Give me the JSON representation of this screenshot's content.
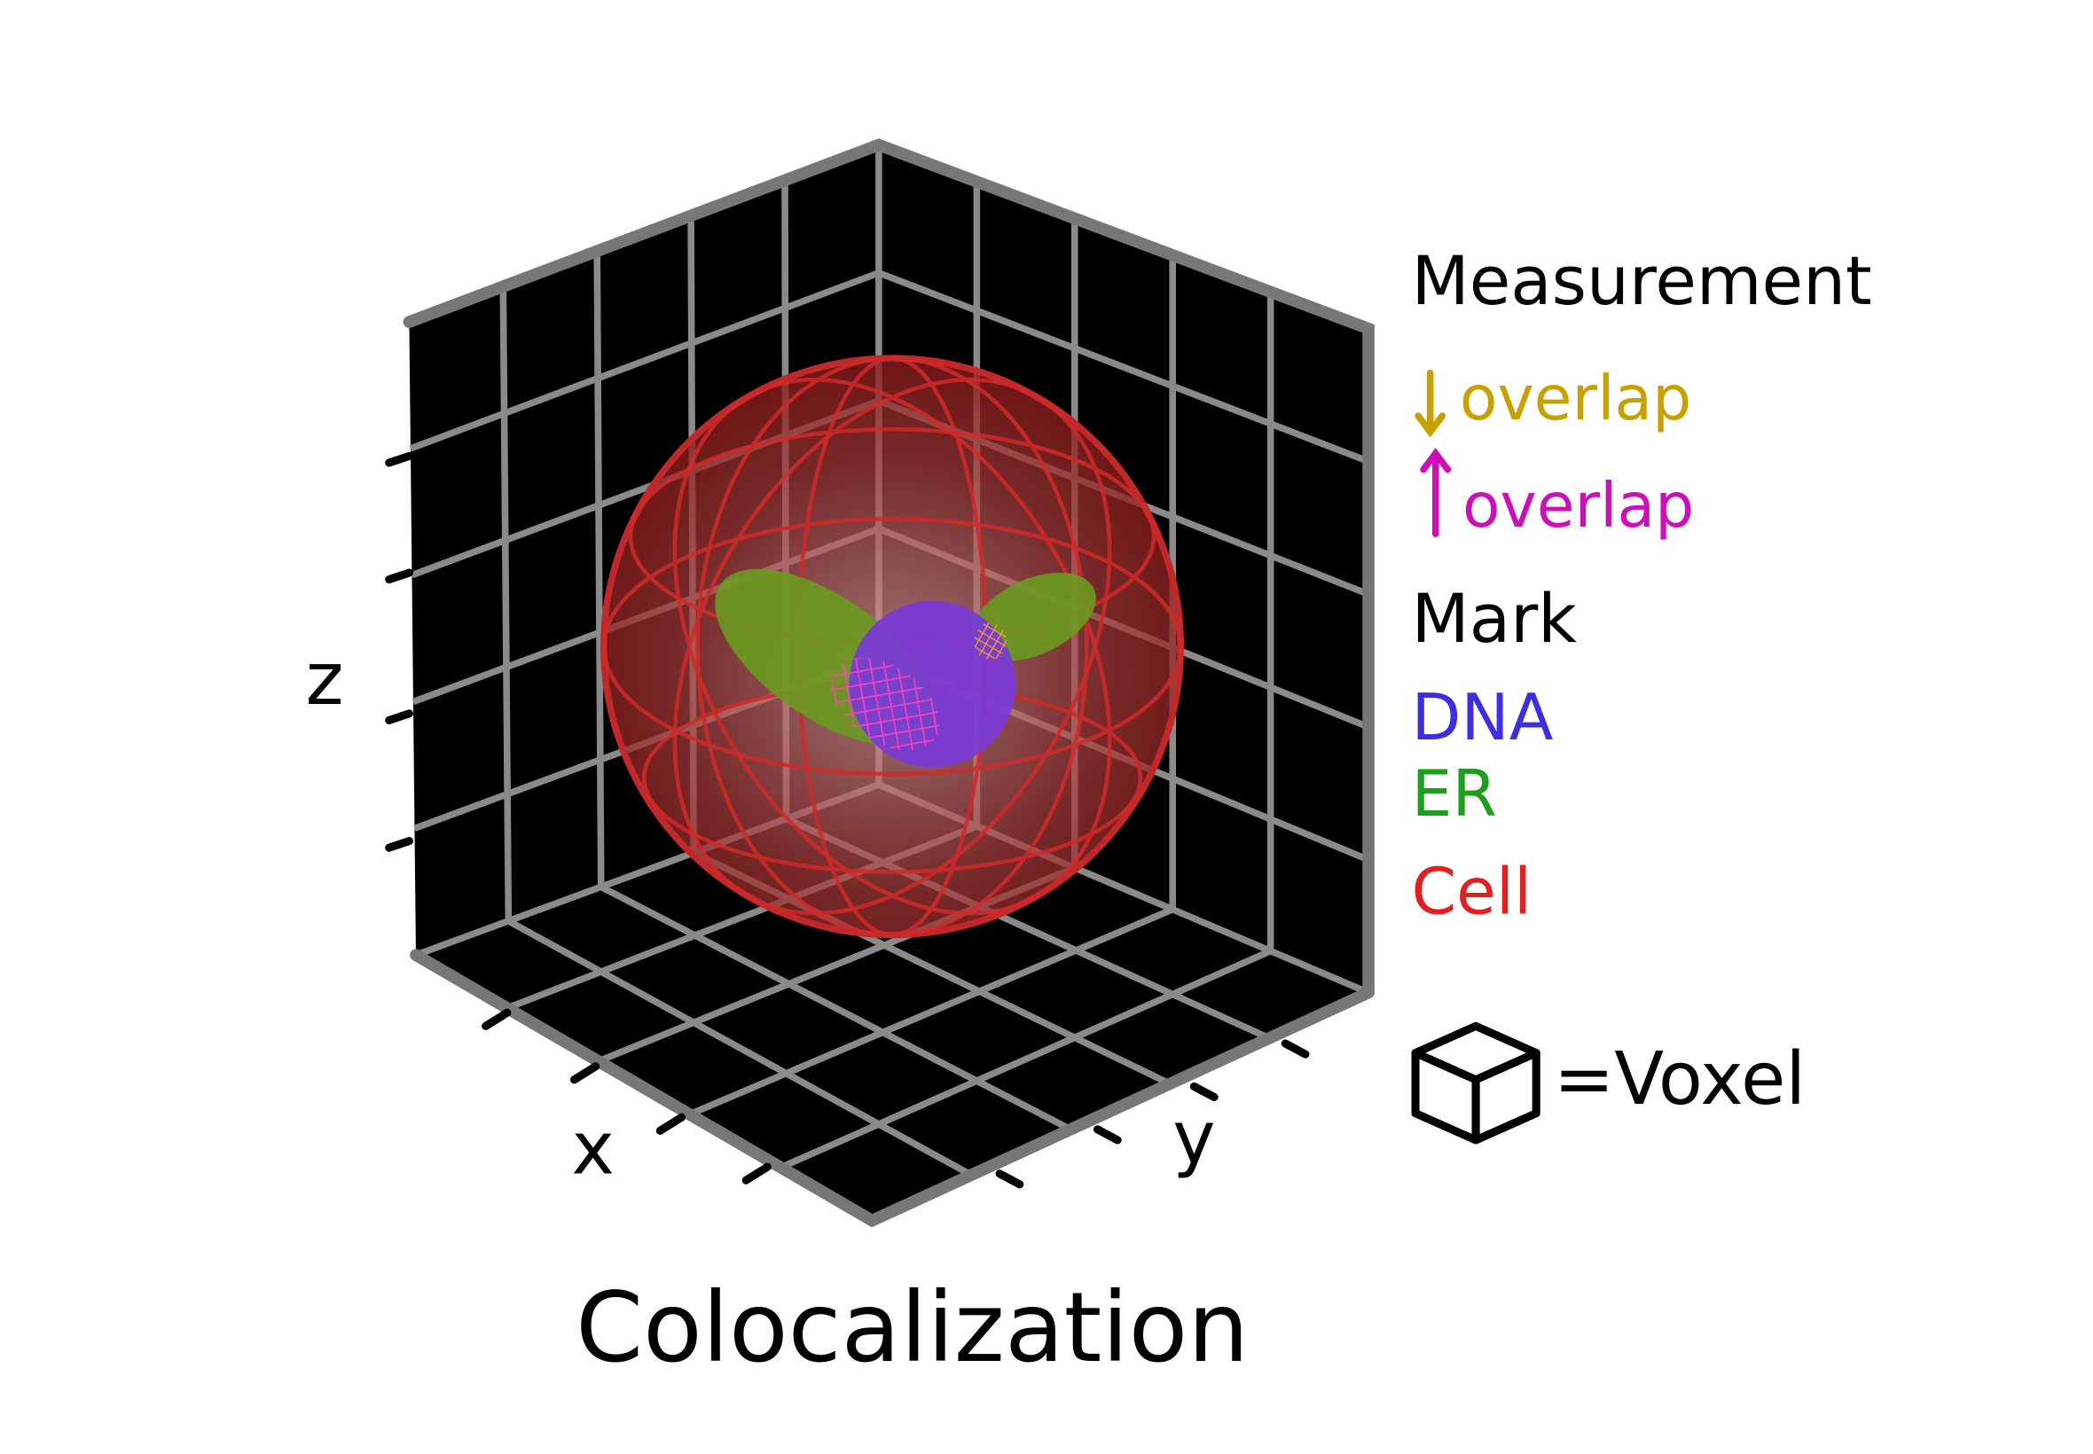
{
  "title": "Colocalization",
  "axes": {
    "x": "x",
    "y": "y",
    "z": "z"
  },
  "legend": {
    "measurement_heading": "Measurement",
    "measurements": [
      {
        "direction": "down",
        "label": "overlap"
      },
      {
        "direction": "up",
        "label": "overlap"
      }
    ],
    "mark_heading": "Mark",
    "marks": [
      "DNA",
      "ER",
      "Cell"
    ],
    "voxel_label": "=Voxel"
  }
}
